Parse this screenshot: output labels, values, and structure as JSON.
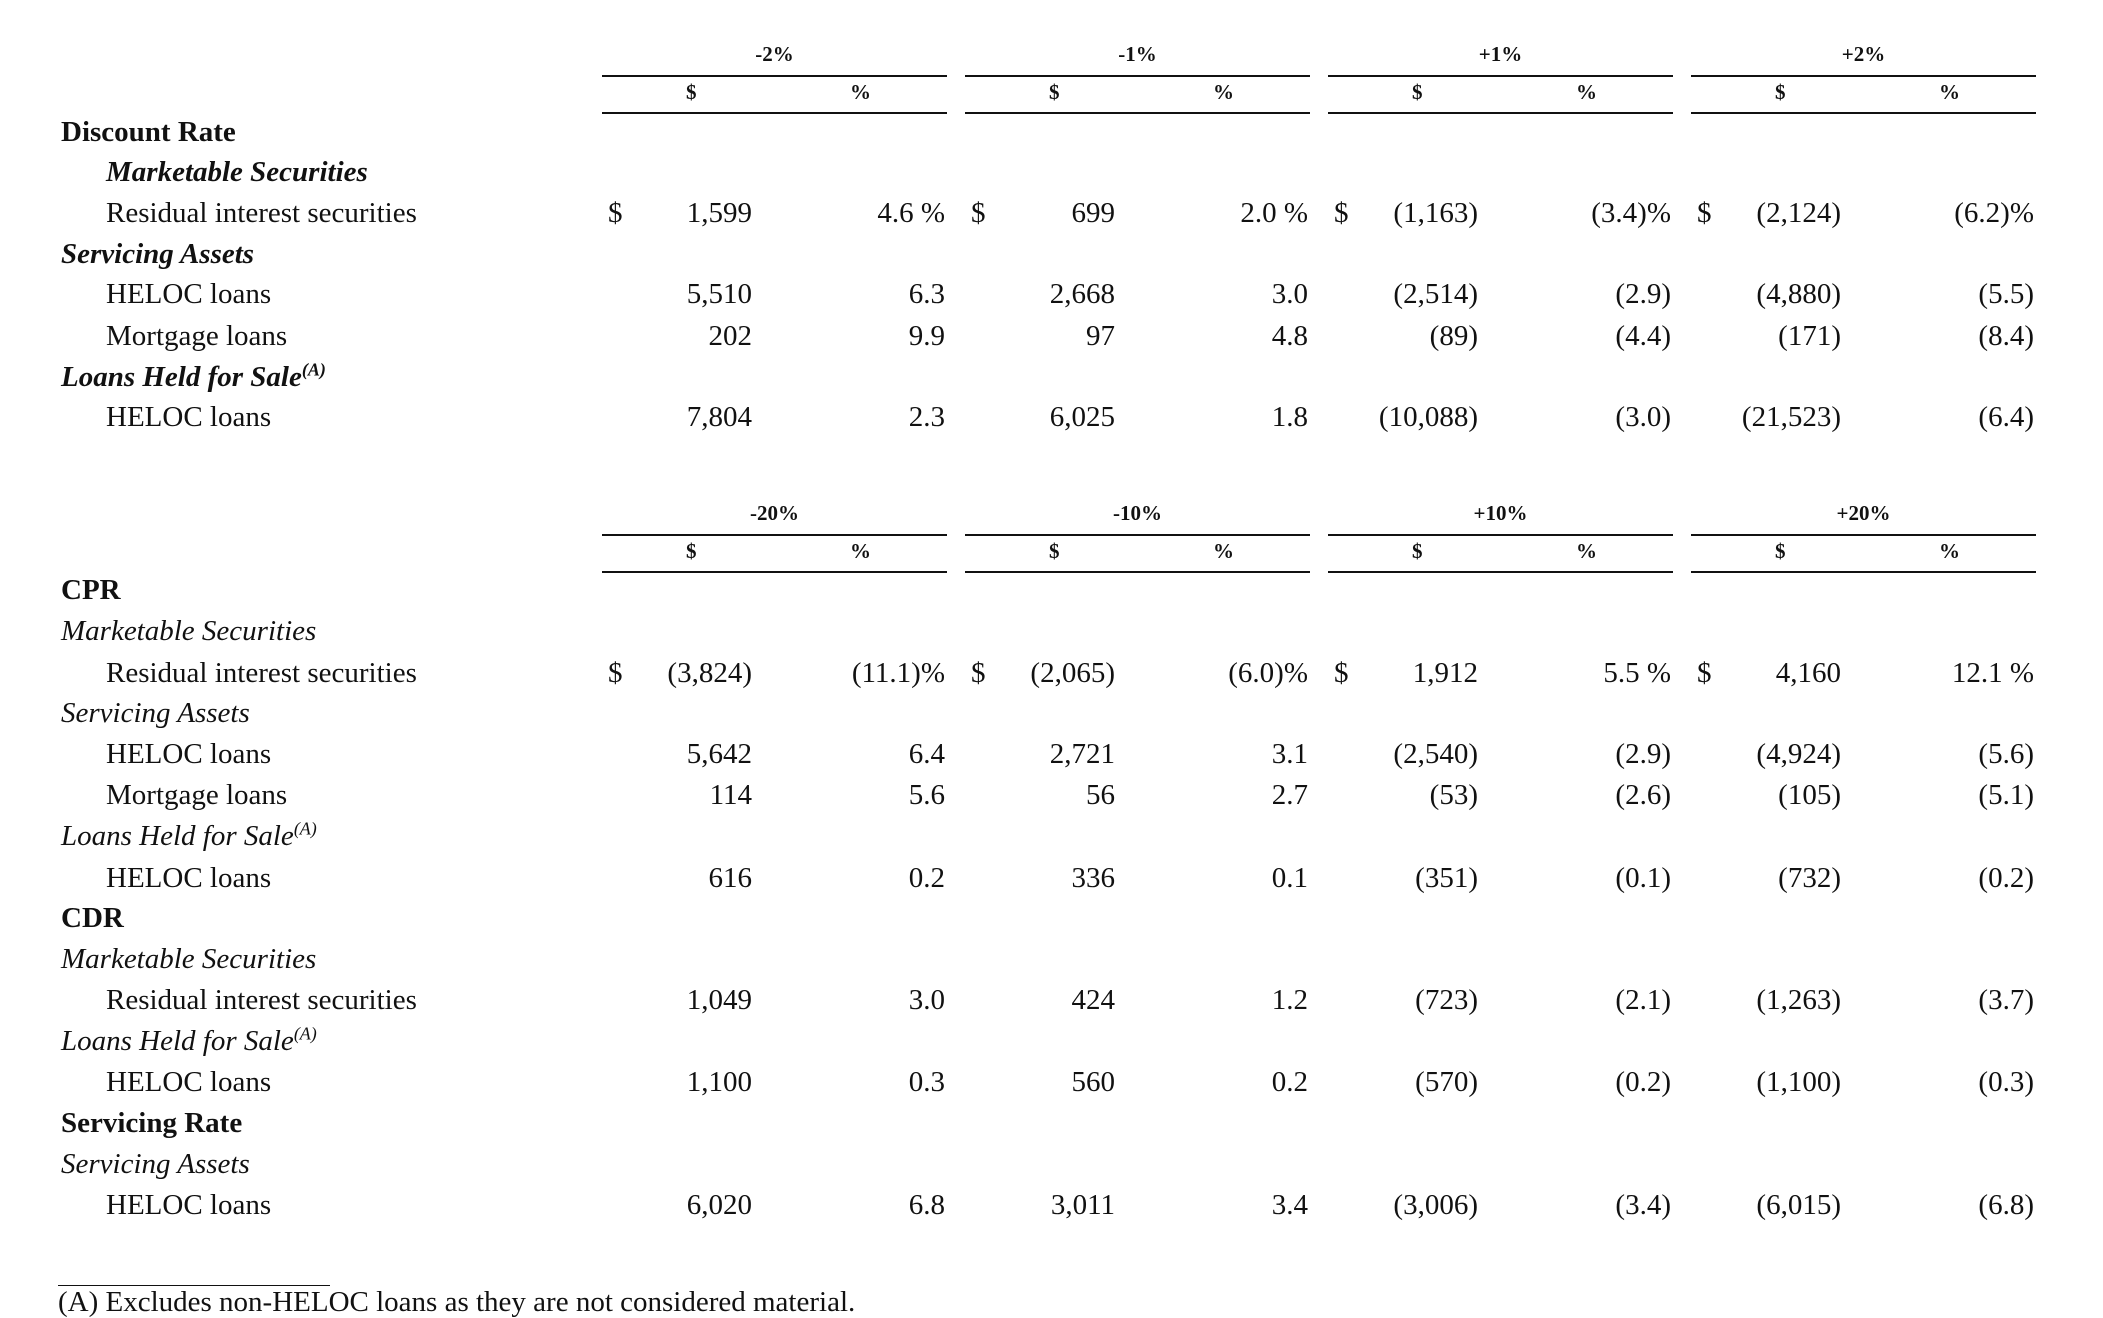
{
  "panels": [
    {
      "scenarios": [
        "-2%",
        "-1%",
        "+1%",
        "+2%"
      ],
      "subheaders": [
        "$",
        "%"
      ],
      "rows": [
        {
          "label": "Discount Rate",
          "style": "b",
          "indent": 0
        },
        {
          "label": "Marketable Securities",
          "style": "bi",
          "indent": 1
        },
        {
          "label": "Residual interest securities",
          "style": "",
          "indent": 1,
          "dollar": true,
          "values": [
            [
              "1,599",
              "4.6 %"
            ],
            [
              "699",
              "2.0 %"
            ],
            [
              "(1,163)",
              "(3.4)%"
            ],
            [
              "(2,124)",
              "(6.2)%"
            ]
          ]
        },
        {
          "label": "Servicing Assets",
          "style": "bi",
          "indent": 0
        },
        {
          "label": "HELOC loans",
          "style": "",
          "indent": 1,
          "values": [
            [
              "5,510",
              "6.3"
            ],
            [
              "2,668",
              "3.0"
            ],
            [
              "(2,514)",
              "(2.9)"
            ],
            [
              "(4,880)",
              "(5.5)"
            ]
          ]
        },
        {
          "label": "Mortgage loans",
          "style": "",
          "indent": 1,
          "values": [
            [
              "202",
              "9.9"
            ],
            [
              "97",
              "4.8"
            ],
            [
              "(89)",
              "(4.4)"
            ],
            [
              "(171)",
              "(8.4)"
            ]
          ]
        },
        {
          "label": "Loans Held for Sale",
          "sup": "(A)",
          "style": "bi",
          "indent": 0
        },
        {
          "label": "HELOC loans",
          "style": "",
          "indent": 1,
          "values": [
            [
              "7,804",
              "2.3"
            ],
            [
              "6,025",
              "1.8"
            ],
            [
              "(10,088)",
              "(3.0)"
            ],
            [
              "(21,523)",
              "(6.4)"
            ]
          ]
        }
      ]
    },
    {
      "scenarios": [
        "-20%",
        "-10%",
        "+10%",
        "+20%"
      ],
      "subheaders": [
        "$",
        "%"
      ],
      "rows": [
        {
          "label": "CPR",
          "style": "b",
          "indent": 0
        },
        {
          "label": "Marketable Securities",
          "style": "i",
          "indent": 0
        },
        {
          "label": "Residual interest securities",
          "style": "",
          "indent": 1,
          "dollar": true,
          "values": [
            [
              "(3,824)",
              "(11.1)%"
            ],
            [
              "(2,065)",
              "(6.0)%"
            ],
            [
              "1,912",
              "5.5 %"
            ],
            [
              "4,160",
              "12.1 %"
            ]
          ]
        },
        {
          "label": "Servicing Assets",
          "style": "i",
          "indent": 0
        },
        {
          "label": "HELOC loans",
          "style": "",
          "indent": 1,
          "values": [
            [
              "5,642",
              "6.4"
            ],
            [
              "2,721",
              "3.1"
            ],
            [
              "(2,540)",
              "(2.9)"
            ],
            [
              "(4,924)",
              "(5.6)"
            ]
          ]
        },
        {
          "label": "Mortgage loans",
          "style": "",
          "indent": 1,
          "values": [
            [
              "114",
              "5.6"
            ],
            [
              "56",
              "2.7"
            ],
            [
              "(53)",
              "(2.6)"
            ],
            [
              "(105)",
              "(5.1)"
            ]
          ]
        },
        {
          "label": "Loans Held for Sale",
          "sup": "(A)",
          "style": "i",
          "indent": 0
        },
        {
          "label": "HELOC loans",
          "style": "",
          "indent": 1,
          "values": [
            [
              "616",
              "0.2"
            ],
            [
              "336",
              "0.1"
            ],
            [
              "(351)",
              "(0.1)"
            ],
            [
              "(732)",
              "(0.2)"
            ]
          ]
        },
        {
          "label": "CDR",
          "style": "b",
          "indent": 0
        },
        {
          "label": "Marketable Securities",
          "style": "i",
          "indent": 0
        },
        {
          "label": "Residual interest securities",
          "style": "",
          "indent": 1,
          "values": [
            [
              "1,049",
              "3.0"
            ],
            [
              "424",
              "1.2"
            ],
            [
              "(723)",
              "(2.1)"
            ],
            [
              "(1,263)",
              "(3.7)"
            ]
          ]
        },
        {
          "label": "Loans Held for Sale",
          "sup": "(A)",
          "style": "i",
          "indent": 0
        },
        {
          "label": "HELOC loans",
          "style": "",
          "indent": 1,
          "values": [
            [
              "1,100",
              "0.3"
            ],
            [
              "560",
              "0.2"
            ],
            [
              "(570)",
              "(0.2)"
            ],
            [
              "(1,100)",
              "(0.3)"
            ]
          ]
        },
        {
          "label": "Servicing Rate",
          "style": "b",
          "indent": 0
        },
        {
          "label": "Servicing Assets",
          "style": "i",
          "indent": 0
        },
        {
          "label": "HELOC loans",
          "style": "",
          "indent": 1,
          "values": [
            [
              "6,020",
              "6.8"
            ],
            [
              "3,011",
              "3.4"
            ],
            [
              "(3,006)",
              "(3.4)"
            ],
            [
              "(6,015)",
              "(6.8)"
            ]
          ]
        }
      ]
    }
  ],
  "dollar_sign": "$",
  "footnote": "(A)   Excludes non-HELOC loans as they are not considered material."
}
